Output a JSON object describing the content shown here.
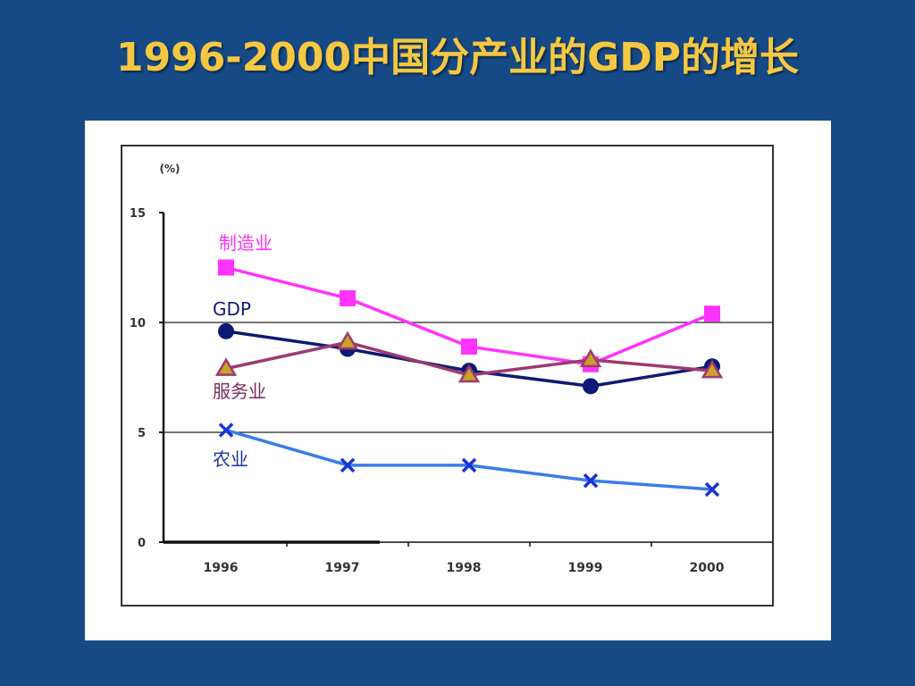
{
  "slide": {
    "title": "1996-2000中国分产业的GDP的增长"
  },
  "colors": {
    "background": "#164a86",
    "title": "#f5c842"
  },
  "chart_data": {
    "type": "line",
    "unit_label": "(%)",
    "categories": [
      "1996",
      "1997",
      "1998",
      "1999",
      "2000"
    ],
    "ylim": [
      0,
      15
    ],
    "yticks": [
      "0",
      "5",
      "10",
      "15"
    ],
    "grid": {
      "horizontal_at": [
        5,
        10
      ]
    },
    "series": [
      {
        "name": "制造业",
        "values": [
          12.5,
          11.1,
          8.9,
          8.1,
          10.4
        ],
        "color": "#ff33ff",
        "marker": "square",
        "label_color": "#ff33ff"
      },
      {
        "name": "GDP",
        "values": [
          9.6,
          8.8,
          7.8,
          7.1,
          8.0
        ],
        "color": "#0d1a73",
        "marker": "circle",
        "label_color": "#0d1a73"
      },
      {
        "name": "服务业",
        "values": [
          7.9,
          9.1,
          7.6,
          8.3,
          7.8
        ],
        "color": "#9c3a70",
        "marker": "triangle",
        "marker_fill": "#c9a227",
        "label_color": "#7d2a58"
      },
      {
        "name": "农业",
        "values": [
          5.1,
          3.5,
          3.5,
          2.8,
          2.4
        ],
        "color": "#3a7de8",
        "marker": "x",
        "marker_color": "#1a33d6",
        "label_color": "#1a33a6"
      }
    ]
  }
}
